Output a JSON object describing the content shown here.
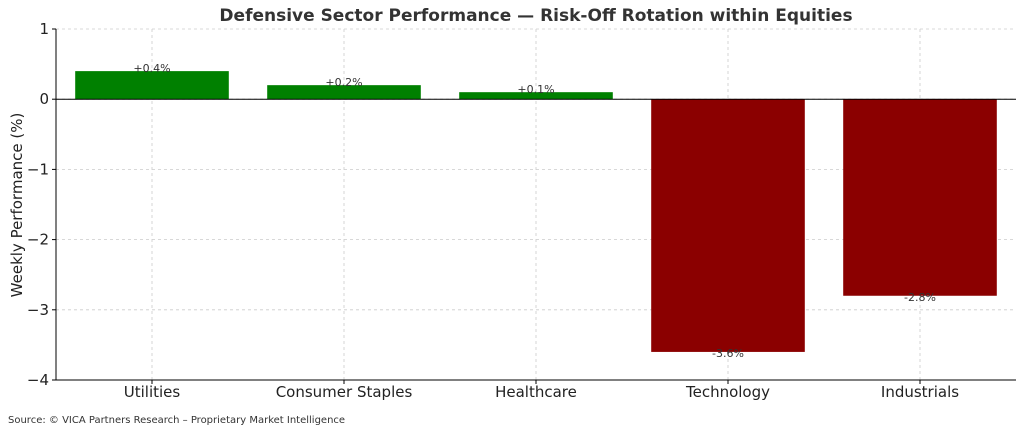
{
  "chart_data": {
    "type": "bar",
    "title": "Defensive Sector Performance — Risk-Off Rotation within Equities",
    "ylabel": "Weekly Performance (%)",
    "xlabel": "",
    "categories": [
      "Utilities",
      "Consumer Staples",
      "Healthcare",
      "Technology",
      "Industrials"
    ],
    "values": [
      0.4,
      0.2,
      0.1,
      -3.6,
      -2.8
    ],
    "data_labels": [
      "+0.4%",
      "+0.2%",
      "+0.1%",
      "-3.6%",
      "-2.8%"
    ],
    "ylim": [
      -4,
      1
    ],
    "yticks": [
      1,
      0,
      -1,
      -2,
      -3,
      -4
    ],
    "ytick_labels": [
      "1",
      "0",
      "−1",
      "−2",
      "−3",
      "−4"
    ],
    "grid": true,
    "colors": {
      "positive": "#008000",
      "negative": "#8b0000"
    }
  },
  "footer": {
    "source": "Source: © VICA Partners Research – Proprietary Market Intelligence"
  }
}
